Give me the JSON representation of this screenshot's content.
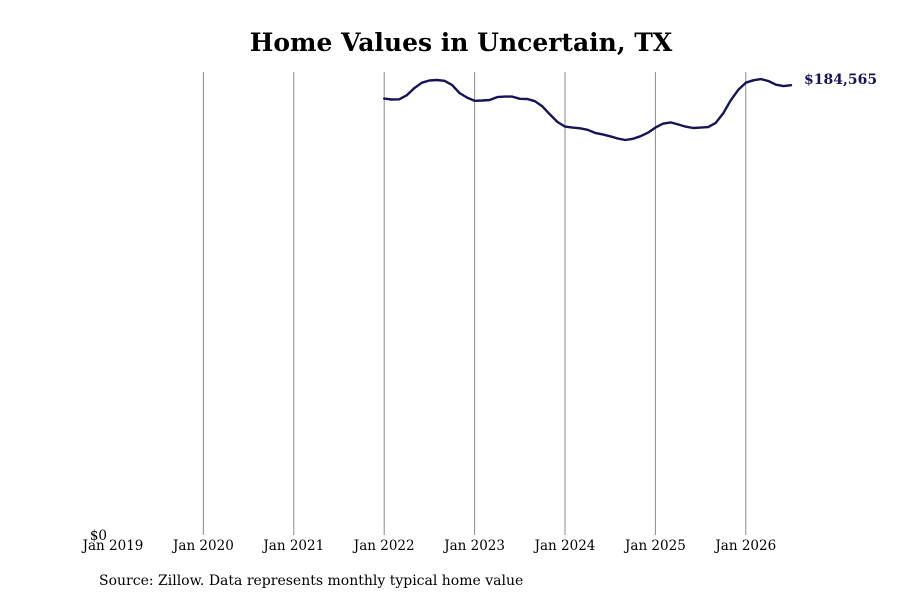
{
  "colors": {
    "line": "#14145a",
    "grid": "#8a8a8a",
    "text": "#000000"
  },
  "footer": {
    "source": "Source: Zillow. Data represents monthly typical home value"
  },
  "chart_data": {
    "type": "line",
    "title": "Home Values in Uncertain, TX",
    "xlabel": "",
    "ylabel": "",
    "x_tick_labels": [
      "Jan 2019",
      "Jan 2020",
      "Jan 2021",
      "Jan 2022",
      "Jan 2023",
      "Jan 2024",
      "Jan 2025",
      "Jan 2026"
    ],
    "y_tick_labels": [
      "$0"
    ],
    "y_ticks": [
      0
    ],
    "ylim": [
      0,
      190000
    ],
    "grid": "vertical",
    "legend": "none",
    "end_label": "$184,565",
    "series": [
      {
        "x": [
          "2022-01",
          "2022-02",
          "2022-03",
          "2022-04",
          "2022-05",
          "2022-06",
          "2022-07",
          "2022-08",
          "2022-09",
          "2022-10",
          "2022-11",
          "2022-12",
          "2023-01",
          "2023-02",
          "2023-03",
          "2023-04",
          "2023-05",
          "2023-06",
          "2023-07",
          "2023-08",
          "2023-09",
          "2023-10",
          "2023-11",
          "2023-12",
          "2024-01",
          "2024-02",
          "2024-03",
          "2024-04",
          "2024-05",
          "2024-06",
          "2024-07",
          "2024-08",
          "2024-09",
          "2024-10",
          "2024-11",
          "2024-12",
          "2025-01",
          "2025-02",
          "2025-03",
          "2025-04",
          "2025-05",
          "2025-06",
          "2025-07",
          "2025-08",
          "2025-09",
          "2025-10",
          "2025-11",
          "2025-12",
          "2026-01",
          "2026-02",
          "2026-03",
          "2026-04",
          "2026-05",
          "2026-06",
          "2026-07"
        ],
        "values": [
          179100,
          178700,
          178800,
          180500,
          183400,
          185600,
          186500,
          186700,
          186400,
          184700,
          181400,
          179500,
          178200,
          178300,
          178500,
          179700,
          179900,
          179900,
          179000,
          178900,
          178000,
          175900,
          172600,
          169500,
          167600,
          167200,
          166900,
          166300,
          165000,
          164400,
          163600,
          162700,
          162100,
          162600,
          163600,
          165100,
          167200,
          168800,
          169300,
          168500,
          167600,
          167000,
          167200,
          167400,
          169100,
          173000,
          178400,
          182700,
          185600,
          186600,
          187100,
          186300,
          184800,
          184200,
          184565
        ]
      }
    ]
  }
}
